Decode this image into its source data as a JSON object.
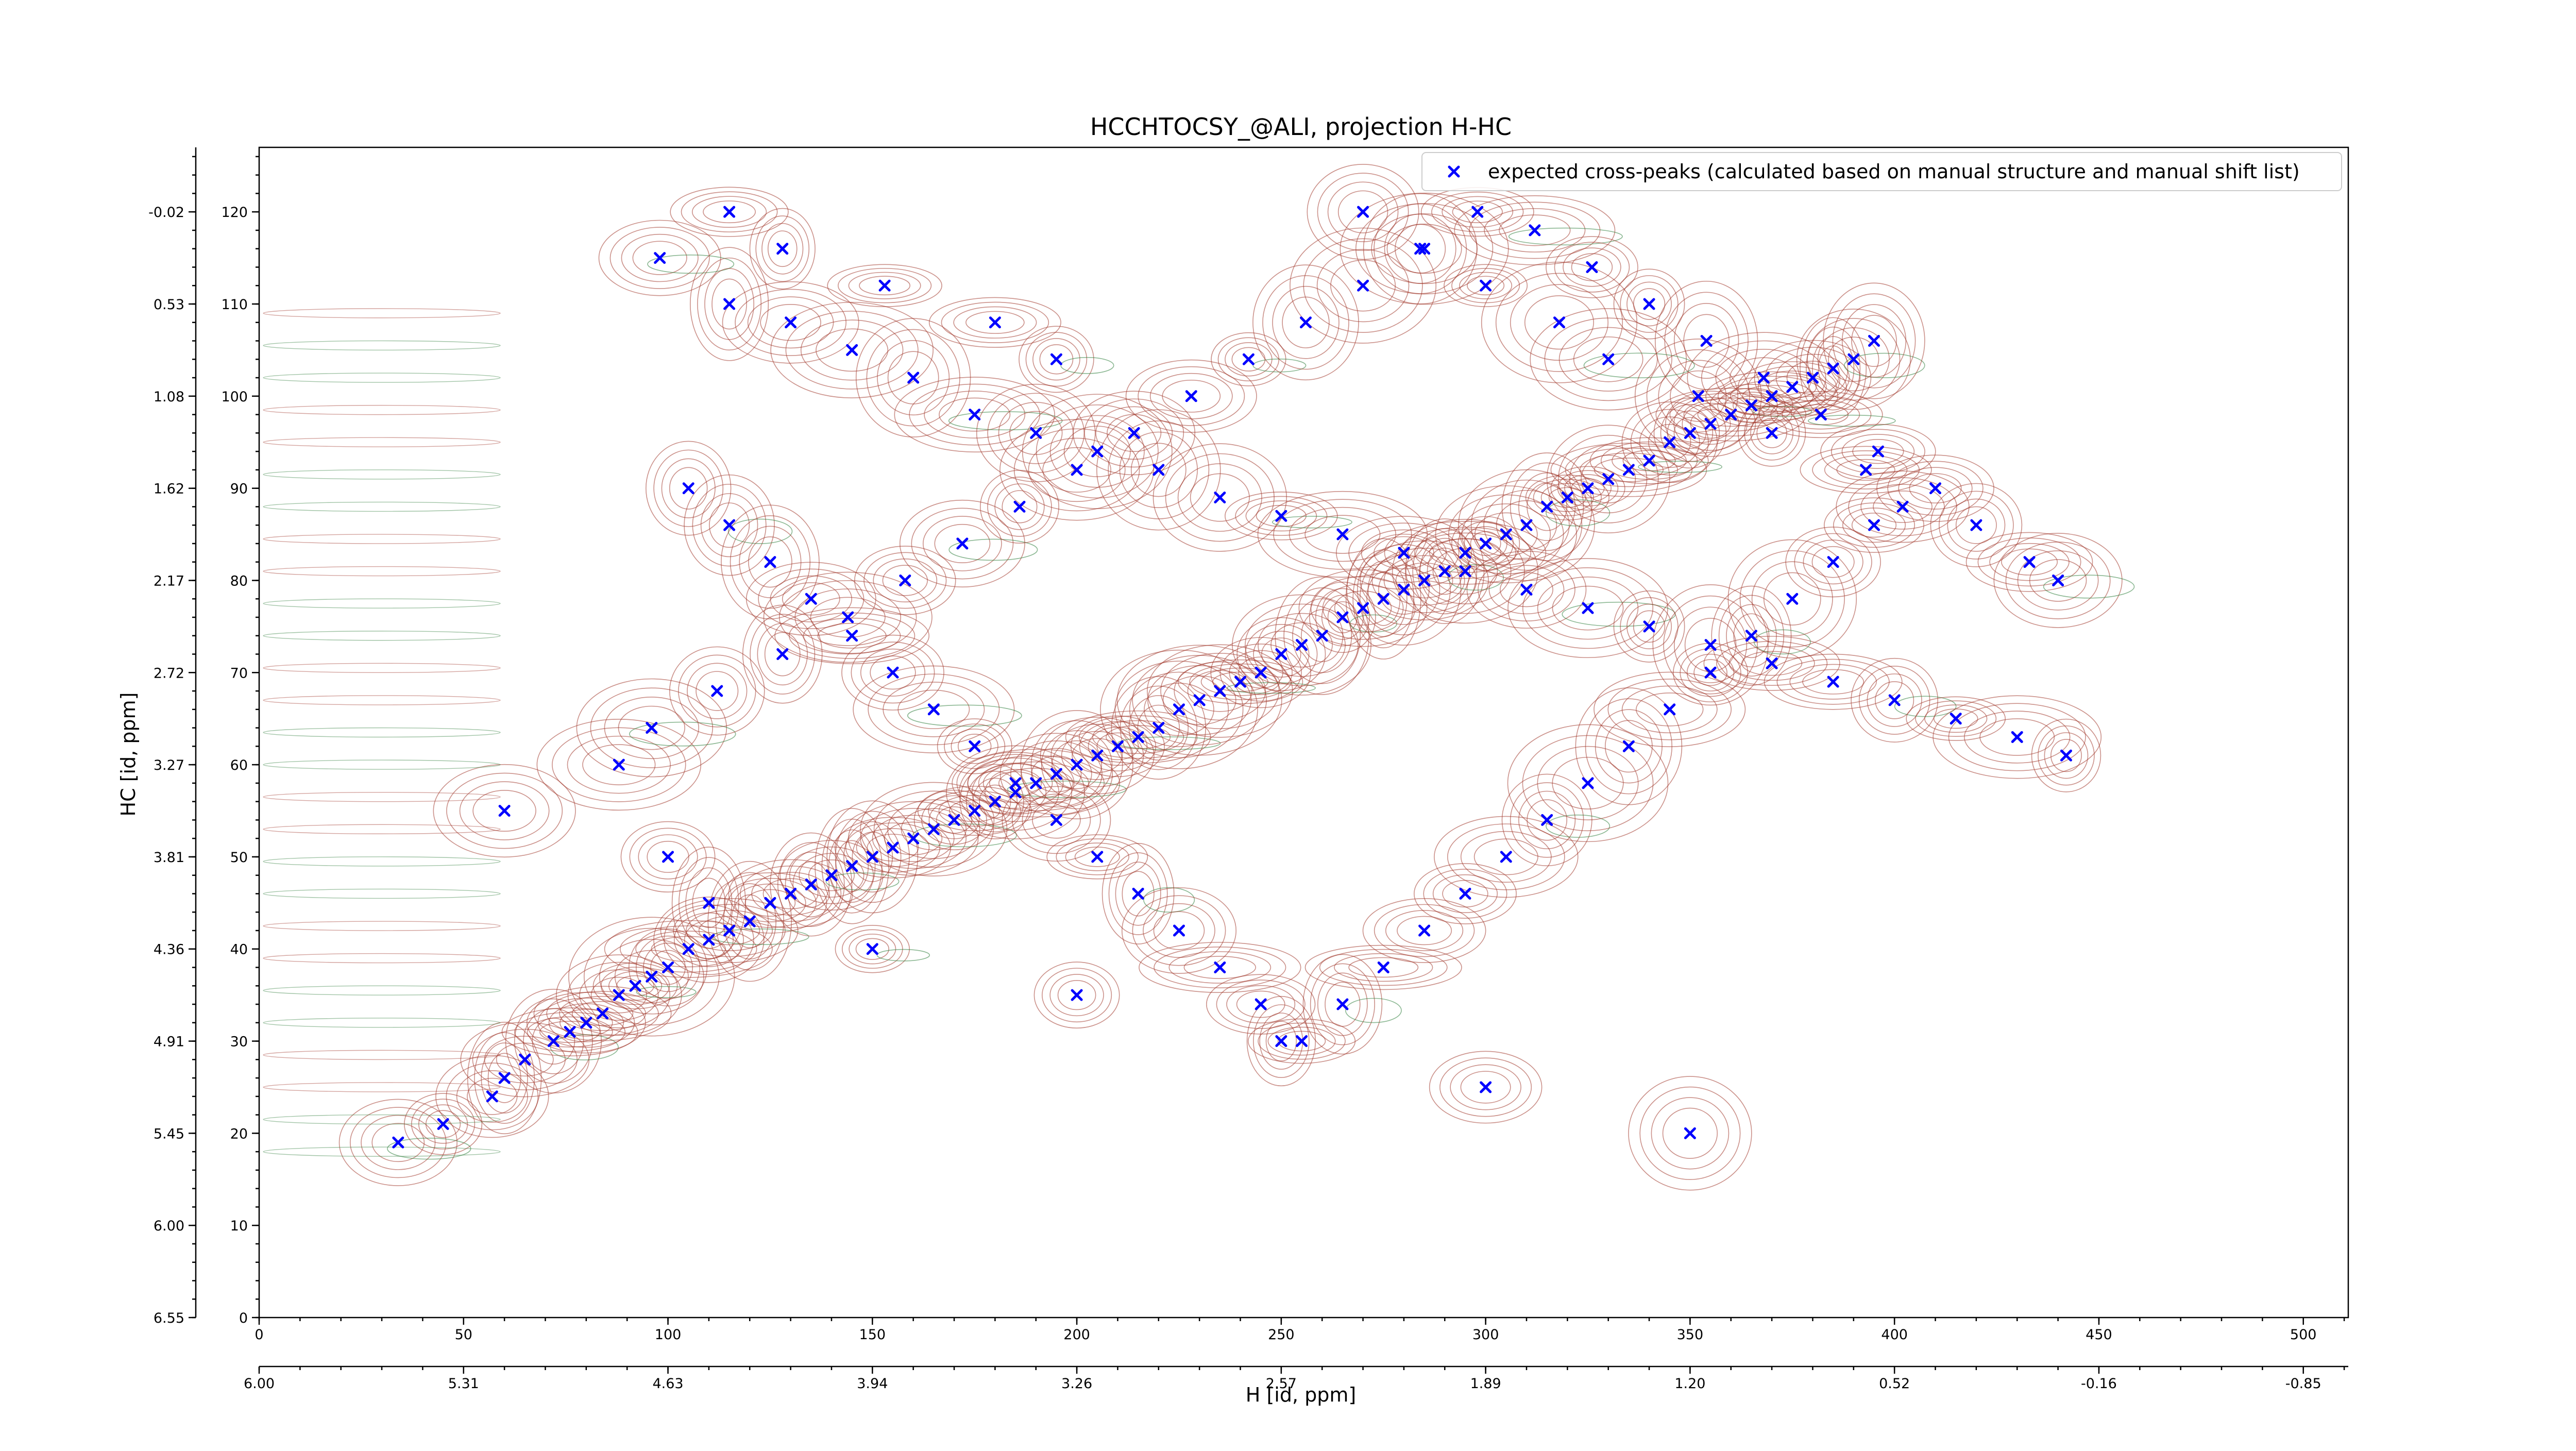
{
  "chart_data": {
    "type": "scatter",
    "title": "HCCHTOCSY_@ALI, projection H-HC",
    "xlabel": "H [id, ppm]",
    "ylabel": "HC [id, ppm]",
    "xlim": [
      0,
      511
    ],
    "ylim": [
      0,
      127
    ],
    "x_index_ticks": [
      "0",
      "50",
      "100",
      "150",
      "200",
      "250",
      "300",
      "350",
      "400",
      "450",
      "500"
    ],
    "x_ppm_ticks": [
      "6.00",
      "5.31",
      "4.63",
      "3.94",
      "3.26",
      "2.57",
      "1.89",
      "1.20",
      "0.52",
      "-0.16",
      "-0.85"
    ],
    "y_index_ticks": [
      "0",
      "10",
      "20",
      "30",
      "40",
      "50",
      "60",
      "70",
      "80",
      "90",
      "100",
      "110",
      "120"
    ],
    "y_ppm_ticks": [
      "6.55",
      "6.00",
      "5.45",
      "4.91",
      "4.36",
      "3.81",
      "3.27",
      "2.72",
      "2.17",
      "1.62",
      "1.08",
      "0.53",
      "-0.02"
    ],
    "grid": false,
    "legend_position": "top-right",
    "colors": {
      "positive_contours": "#a0362a",
      "negative_contours": "#2e7d3a",
      "markers": "#0000ff"
    },
    "series": [
      {
        "name": "expected cross-peaks (calculated based on manual structure and manual shift list)",
        "marker": "x",
        "x": [
          34,
          45,
          57,
          60,
          65,
          72,
          76,
          80,
          84,
          88,
          92,
          96,
          100,
          105,
          110,
          115,
          120,
          125,
          130,
          135,
          140,
          145,
          150,
          155,
          160,
          165,
          170,
          175,
          180,
          185,
          190,
          195,
          200,
          205,
          210,
          215,
          220,
          225,
          230,
          235,
          240,
          245,
          250,
          255,
          260,
          265,
          270,
          275,
          280,
          285,
          290,
          295,
          300,
          305,
          310,
          315,
          320,
          325,
          330,
          335,
          340,
          345,
          350,
          355,
          360,
          365,
          370,
          375,
          380,
          385,
          390,
          395,
          60,
          100,
          110,
          150,
          200,
          250,
          300,
          350,
          98,
          115,
          130,
          145,
          160,
          175,
          190,
          205,
          220,
          235,
          250,
          265,
          280,
          295,
          310,
          325,
          340,
          355,
          370,
          385,
          400,
          415,
          430,
          442,
          105,
          115,
          125,
          135,
          145,
          155,
          165,
          175,
          185,
          195,
          205,
          215,
          225,
          235,
          245,
          255,
          265,
          275,
          285,
          295,
          305,
          315,
          325,
          335,
          345,
          355,
          365,
          375,
          385,
          395,
          88,
          96,
          112,
          128,
          144,
          158,
          172,
          186,
          200,
          214,
          228,
          242,
          256,
          270,
          284,
          298,
          312,
          326,
          340,
          354,
          368,
          382,
          396,
          410,
          420,
          433,
          440,
          115,
          128,
          153,
          180,
          195,
          270,
          285,
          300,
          318,
          330,
          352,
          370,
          393,
          402
        ],
        "y": [
          19,
          21,
          24,
          26,
          28,
          30,
          31,
          32,
          33,
          35,
          36,
          37,
          38,
          40,
          41,
          42,
          43,
          45,
          46,
          47,
          48,
          49,
          50,
          51,
          52,
          53,
          54,
          55,
          56,
          57,
          58,
          59,
          60,
          61,
          62,
          63,
          64,
          66,
          67,
          68,
          69,
          70,
          72,
          73,
          74,
          76,
          77,
          78,
          79,
          80,
          81,
          83,
          84,
          85,
          86,
          88,
          89,
          90,
          91,
          92,
          93,
          95,
          96,
          97,
          98,
          99,
          100,
          101,
          102,
          103,
          104,
          106,
          55,
          50,
          45,
          40,
          35,
          30,
          25,
          20,
          115,
          110,
          108,
          105,
          102,
          98,
          96,
          94,
          92,
          89,
          87,
          85,
          83,
          81,
          79,
          77,
          75,
          73,
          71,
          69,
          67,
          65,
          63,
          61,
          90,
          86,
          82,
          78,
          74,
          70,
          66,
          62,
          58,
          54,
          50,
          46,
          42,
          38,
          34,
          30,
          34,
          38,
          42,
          46,
          50,
          54,
          58,
          62,
          66,
          70,
          74,
          78,
          82,
          86,
          60,
          64,
          68,
          72,
          76,
          80,
          84,
          88,
          92,
          96,
          100,
          104,
          108,
          112,
          116,
          120,
          118,
          114,
          110,
          106,
          102,
          98,
          94,
          90,
          86,
          82,
          80,
          120,
          116,
          112,
          108,
          104,
          120,
          116,
          112,
          108,
          104,
          100,
          96,
          92,
          88
        ]
      }
    ]
  }
}
